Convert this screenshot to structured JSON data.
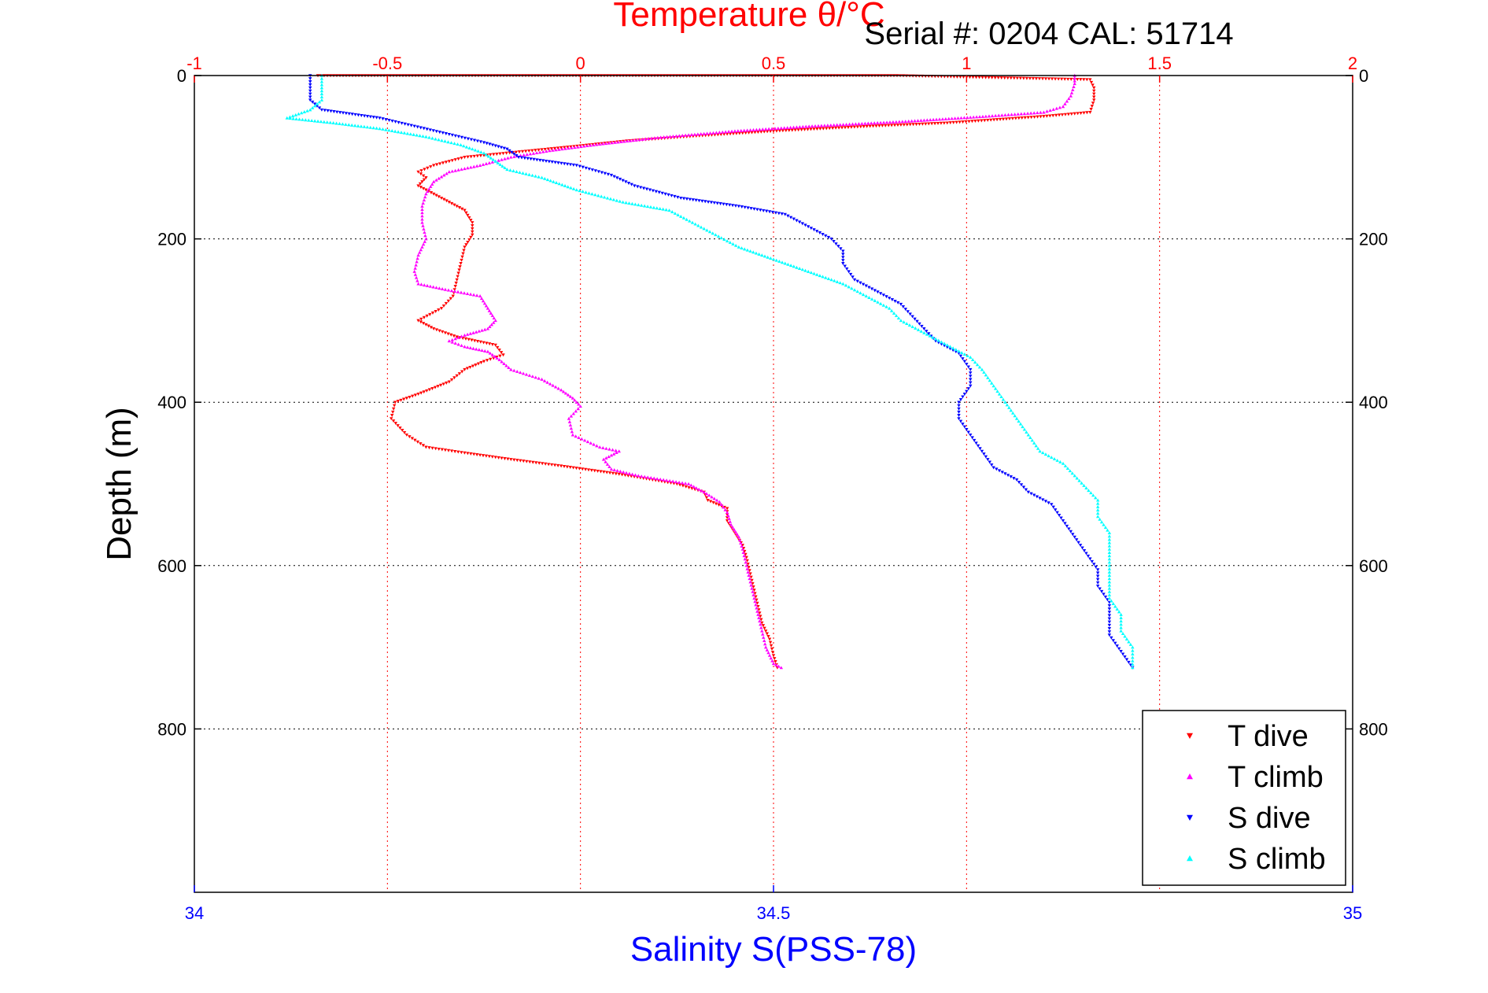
{
  "chart_data": {
    "type": "scatter",
    "title": "Temperature θ/°C",
    "subtitle": "Serial #: 0204  CAL: 51714",
    "ylabel": "Depth (m)",
    "xlabel": "Salinity S(PSS-78)",
    "top_axis": {
      "label": "Temperature θ/°C",
      "range": [
        -1,
        2
      ],
      "ticks": [
        "-1",
        "-0.5",
        "0",
        "0.5",
        "1",
        "1.5",
        "2"
      ],
      "color": "#ff0000"
    },
    "bottom_axis": {
      "label": "Salinity S(PSS-78)",
      "range": [
        34,
        35
      ],
      "ticks": [
        "34",
        "34.5",
        "35"
      ],
      "color": "#0000ff"
    },
    "y_axis": {
      "range": [
        0,
        1000
      ],
      "reversed": true,
      "ticks": [
        "0",
        "200",
        "400",
        "600",
        "800"
      ]
    },
    "grid": true,
    "legend_position": "bottom-right",
    "series": [
      {
        "name": "T dive",
        "axis": "temperature",
        "color": "#ff0000",
        "marker": "triangle-down",
        "points": [
          [
            -0.68,
            0
          ],
          [
            0.82,
            0
          ],
          [
            1.32,
            5
          ],
          [
            1.33,
            15
          ],
          [
            1.33,
            30
          ],
          [
            1.32,
            45
          ],
          [
            1.2,
            50
          ],
          [
            0.95,
            58
          ],
          [
            0.75,
            62
          ],
          [
            0.5,
            68
          ],
          [
            0.3,
            74
          ],
          [
            0.12,
            80
          ],
          [
            0.0,
            86
          ],
          [
            -0.15,
            93
          ],
          [
            -0.3,
            100
          ],
          [
            -0.38,
            110
          ],
          [
            -0.42,
            118
          ],
          [
            -0.4,
            125
          ],
          [
            -0.42,
            135
          ],
          [
            -0.38,
            145
          ],
          [
            -0.34,
            155
          ],
          [
            -0.3,
            165
          ],
          [
            -0.28,
            180
          ],
          [
            -0.28,
            195
          ],
          [
            -0.3,
            210
          ],
          [
            -0.31,
            230
          ],
          [
            -0.32,
            250
          ],
          [
            -0.33,
            270
          ],
          [
            -0.36,
            285
          ],
          [
            -0.42,
            300
          ],
          [
            -0.38,
            310
          ],
          [
            -0.32,
            320
          ],
          [
            -0.22,
            330
          ],
          [
            -0.2,
            342
          ],
          [
            -0.25,
            350
          ],
          [
            -0.3,
            360
          ],
          [
            -0.34,
            375
          ],
          [
            -0.42,
            390
          ],
          [
            -0.48,
            400
          ],
          [
            -0.49,
            420
          ],
          [
            -0.45,
            440
          ],
          [
            -0.4,
            455
          ],
          [
            -0.3,
            462
          ],
          [
            -0.18,
            470
          ],
          [
            -0.05,
            478
          ],
          [
            0.1,
            488
          ],
          [
            0.25,
            500
          ],
          [
            0.32,
            510
          ],
          [
            0.33,
            520
          ],
          [
            0.38,
            530
          ],
          [
            0.38,
            545
          ],
          [
            0.4,
            560
          ],
          [
            0.42,
            575
          ],
          [
            0.43,
            590
          ],
          [
            0.44,
            610
          ],
          [
            0.45,
            630
          ],
          [
            0.46,
            650
          ],
          [
            0.47,
            670
          ],
          [
            0.49,
            690
          ],
          [
            0.5,
            710
          ],
          [
            0.51,
            725
          ]
        ]
      },
      {
        "name": "T climb",
        "axis": "temperature",
        "color": "#ff00ff",
        "marker": "triangle-up",
        "points": [
          [
            1.28,
            0
          ],
          [
            1.28,
            10
          ],
          [
            1.27,
            25
          ],
          [
            1.25,
            38
          ],
          [
            1.2,
            45
          ],
          [
            1.05,
            50
          ],
          [
            0.85,
            56
          ],
          [
            0.6,
            62
          ],
          [
            0.4,
            68
          ],
          [
            0.2,
            76
          ],
          [
            0.05,
            84
          ],
          [
            -0.08,
            92
          ],
          [
            -0.18,
            100
          ],
          [
            -0.26,
            110
          ],
          [
            -0.34,
            118
          ],
          [
            -0.38,
            130
          ],
          [
            -0.4,
            145
          ],
          [
            -0.41,
            160
          ],
          [
            -0.41,
            180
          ],
          [
            -0.4,
            200
          ],
          [
            -0.42,
            220
          ],
          [
            -0.43,
            240
          ],
          [
            -0.42,
            255
          ],
          [
            -0.35,
            262
          ],
          [
            -0.26,
            270
          ],
          [
            -0.24,
            285
          ],
          [
            -0.22,
            300
          ],
          [
            -0.24,
            310
          ],
          [
            -0.3,
            318
          ],
          [
            -0.34,
            325
          ],
          [
            -0.3,
            332
          ],
          [
            -0.24,
            338
          ],
          [
            -0.21,
            348
          ],
          [
            -0.18,
            360
          ],
          [
            -0.1,
            372
          ],
          [
            -0.05,
            385
          ],
          [
            -0.02,
            395
          ],
          [
            0.0,
            405
          ],
          [
            -0.03,
            420
          ],
          [
            -0.02,
            440
          ],
          [
            0.05,
            455
          ],
          [
            0.1,
            460
          ],
          [
            0.06,
            470
          ],
          [
            0.08,
            482
          ],
          [
            0.15,
            490
          ],
          [
            0.28,
            500
          ],
          [
            0.32,
            510
          ],
          [
            0.36,
            522
          ],
          [
            0.38,
            535
          ],
          [
            0.39,
            550
          ],
          [
            0.41,
            565
          ],
          [
            0.42,
            580
          ],
          [
            0.43,
            600
          ],
          [
            0.44,
            620
          ],
          [
            0.45,
            640
          ],
          [
            0.46,
            660
          ],
          [
            0.47,
            680
          ],
          [
            0.48,
            700
          ],
          [
            0.5,
            720
          ],
          [
            0.52,
            725
          ]
        ]
      },
      {
        "name": "S dive",
        "axis": "salinity",
        "color": "#0000ff",
        "marker": "triangle-down",
        "points": [
          [
            34.1,
            0
          ],
          [
            34.1,
            15
          ],
          [
            34.1,
            30
          ],
          [
            34.11,
            42
          ],
          [
            34.16,
            52
          ],
          [
            34.19,
            62
          ],
          [
            34.22,
            72
          ],
          [
            34.25,
            82
          ],
          [
            34.27,
            90
          ],
          [
            34.28,
            100
          ],
          [
            34.33,
            110
          ],
          [
            34.36,
            122
          ],
          [
            34.38,
            135
          ],
          [
            34.42,
            150
          ],
          [
            34.47,
            160
          ],
          [
            34.51,
            170
          ],
          [
            34.53,
            185
          ],
          [
            34.55,
            200
          ],
          [
            34.56,
            215
          ],
          [
            34.56,
            230
          ],
          [
            34.57,
            250
          ],
          [
            34.59,
            265
          ],
          [
            34.61,
            280
          ],
          [
            34.62,
            295
          ],
          [
            34.63,
            310
          ],
          [
            34.64,
            325
          ],
          [
            34.66,
            340
          ],
          [
            34.67,
            360
          ],
          [
            34.67,
            380
          ],
          [
            34.66,
            400
          ],
          [
            34.66,
            420
          ],
          [
            34.67,
            440
          ],
          [
            34.68,
            460
          ],
          [
            34.69,
            480
          ],
          [
            34.71,
            495
          ],
          [
            34.72,
            510
          ],
          [
            34.74,
            525
          ],
          [
            34.75,
            545
          ],
          [
            34.76,
            565
          ],
          [
            34.77,
            585
          ],
          [
            34.78,
            605
          ],
          [
            34.78,
            625
          ],
          [
            34.79,
            645
          ],
          [
            34.79,
            665
          ],
          [
            34.79,
            685
          ],
          [
            34.8,
            705
          ],
          [
            34.81,
            725
          ]
        ]
      },
      {
        "name": "S climb",
        "axis": "salinity",
        "color": "#00ffff",
        "marker": "triangle-up",
        "points": [
          [
            34.11,
            0
          ],
          [
            34.11,
            15
          ],
          [
            34.11,
            30
          ],
          [
            34.1,
            42
          ],
          [
            34.08,
            52
          ],
          [
            34.12,
            58
          ],
          [
            34.16,
            65
          ],
          [
            34.2,
            75
          ],
          [
            34.23,
            85
          ],
          [
            34.25,
            95
          ],
          [
            34.26,
            105
          ],
          [
            34.27,
            115
          ],
          [
            34.3,
            125
          ],
          [
            34.33,
            140
          ],
          [
            34.37,
            155
          ],
          [
            34.41,
            165
          ],
          [
            34.43,
            180
          ],
          [
            34.45,
            195
          ],
          [
            34.47,
            210
          ],
          [
            34.5,
            225
          ],
          [
            34.53,
            240
          ],
          [
            34.56,
            255
          ],
          [
            34.58,
            270
          ],
          [
            34.6,
            285
          ],
          [
            34.61,
            300
          ],
          [
            34.63,
            315
          ],
          [
            34.65,
            330
          ],
          [
            34.67,
            345
          ],
          [
            34.68,
            360
          ],
          [
            34.69,
            380
          ],
          [
            34.7,
            400
          ],
          [
            34.71,
            420
          ],
          [
            34.72,
            440
          ],
          [
            34.73,
            460
          ],
          [
            34.75,
            475
          ],
          [
            34.76,
            490
          ],
          [
            34.77,
            505
          ],
          [
            34.78,
            520
          ],
          [
            34.78,
            540
          ],
          [
            34.79,
            560
          ],
          [
            34.79,
            580
          ],
          [
            34.79,
            600
          ],
          [
            34.79,
            620
          ],
          [
            34.79,
            640
          ],
          [
            34.8,
            660
          ],
          [
            34.8,
            680
          ],
          [
            34.81,
            700
          ],
          [
            34.81,
            725
          ]
        ]
      }
    ]
  }
}
